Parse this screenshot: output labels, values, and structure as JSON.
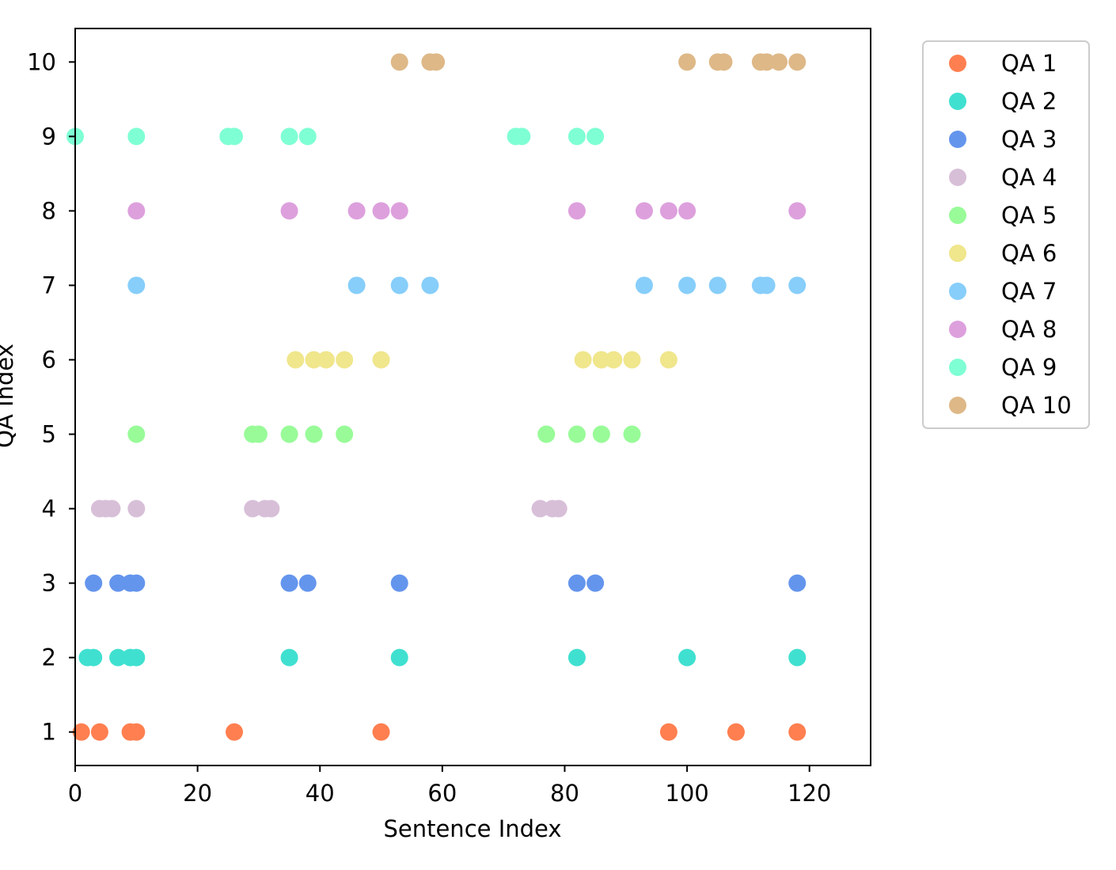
{
  "chart_data": {
    "type": "scatter",
    "title": "",
    "xlabel": "Sentence Index",
    "ylabel": "QA Index",
    "xlim": [
      0,
      130
    ],
    "ylim": [
      0.55,
      10.45
    ],
    "xticks": [
      0,
      20,
      40,
      60,
      80,
      100,
      120
    ],
    "yticks": [
      1,
      2,
      3,
      4,
      5,
      6,
      7,
      8,
      9,
      10
    ],
    "grid": false,
    "legend_position": "outside-right-top",
    "series": [
      {
        "name": "QA 1",
        "color": "#ff7f50",
        "y": 1,
        "x": [
          1,
          4,
          9,
          10,
          26,
          50,
          97,
          108,
          118
        ]
      },
      {
        "name": "QA 2",
        "color": "#40e0d0",
        "y": 2,
        "x": [
          2,
          3,
          7,
          9,
          10,
          35,
          53,
          82,
          100,
          118
        ]
      },
      {
        "name": "QA 3",
        "color": "#6495ed",
        "y": 3,
        "x": [
          3,
          7,
          9,
          10,
          35,
          38,
          53,
          82,
          85,
          118
        ]
      },
      {
        "name": "QA 4",
        "color": "#d8bfd8",
        "y": 4,
        "x": [
          4,
          5,
          6,
          10,
          29,
          31,
          32,
          76,
          78,
          79
        ]
      },
      {
        "name": "QA 5",
        "color": "#98fb98",
        "y": 5,
        "x": [
          10,
          29,
          30,
          35,
          39,
          44,
          77,
          82,
          86,
          91
        ]
      },
      {
        "name": "QA 6",
        "color": "#f0e68c",
        "y": 6,
        "x": [
          36,
          39,
          41,
          44,
          50,
          83,
          86,
          88,
          91,
          97
        ]
      },
      {
        "name": "QA 7",
        "color": "#87cefa",
        "y": 7,
        "x": [
          10,
          46,
          53,
          58,
          93,
          100,
          105,
          112,
          113,
          118
        ]
      },
      {
        "name": "QA 8",
        "color": "#dda0dd",
        "y": 8,
        "x": [
          10,
          35,
          46,
          50,
          53,
          82,
          93,
          97,
          100,
          118
        ]
      },
      {
        "name": "QA 9",
        "color": "#7fffd4",
        "y": 9,
        "x": [
          0,
          10,
          25,
          26,
          35,
          38,
          72,
          73,
          82,
          85
        ]
      },
      {
        "name": "QA 10",
        "color": "#deb887",
        "y": 10,
        "x": [
          53,
          58,
          59,
          100,
          105,
          106,
          112,
          113,
          115,
          118
        ]
      }
    ]
  }
}
